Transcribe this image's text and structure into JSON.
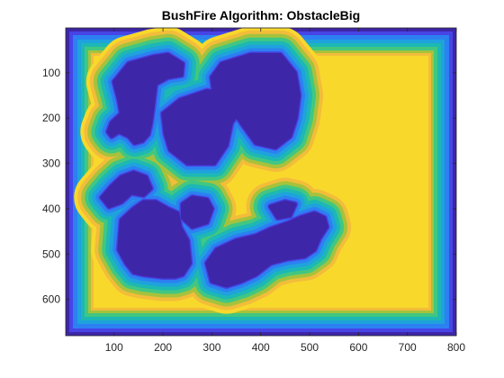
{
  "chart_data": {
    "type": "heatmap",
    "title": "BushFire Algorithm: ObstacleBig",
    "xlabel": "",
    "ylabel": "",
    "xlim": [
      1,
      800
    ],
    "ylim": [
      1,
      680
    ],
    "y_direction": "reverse",
    "x_ticks": [
      100,
      200,
      300,
      400,
      500,
      600,
      700,
      800
    ],
    "y_ticks": [
      100,
      200,
      300,
      400,
      500,
      600
    ],
    "colormap": "parula",
    "colormap_stops": [
      "#3e26a8",
      "#4744e5",
      "#2c80f2",
      "#1fa2dd",
      "#1db8b4",
      "#41c782",
      "#a6c23c",
      "#f2bd3a",
      "#f9d82c"
    ],
    "grid": false,
    "legend": "none",
    "wall_thickness_px": 42,
    "obstacles": [
      {
        "name": "upper-left blob",
        "kind": "polygon",
        "points": [
          [
            100,
            120
          ],
          [
            130,
            80
          ],
          [
            180,
            65
          ],
          [
            210,
            60
          ],
          [
            240,
            80
          ],
          [
            238,
            105
          ],
          [
            210,
            110
          ],
          [
            185,
            125
          ],
          [
            180,
            170
          ],
          [
            175,
            210
          ],
          [
            170,
            235
          ],
          [
            158,
            250
          ],
          [
            142,
            255
          ],
          [
            130,
            240
          ],
          [
            110,
            230
          ],
          [
            95,
            240
          ],
          [
            88,
            230
          ],
          [
            95,
            210
          ],
          [
            115,
            190
          ],
          [
            110,
            160
          ]
        ]
      },
      {
        "name": "upper-right blob",
        "kind": "polygon",
        "points": [
          [
            300,
            110
          ],
          [
            320,
            80
          ],
          [
            380,
            60
          ],
          [
            440,
            60
          ],
          [
            470,
            100
          ],
          [
            478,
            150
          ],
          [
            472,
            200
          ],
          [
            460,
            240
          ],
          [
            430,
            265
          ],
          [
            390,
            255
          ],
          [
            360,
            210
          ],
          [
            335,
            170
          ],
          [
            305,
            150
          ]
        ]
      },
      {
        "name": "center blob",
        "kind": "polygon",
        "points": [
          [
            200,
            190
          ],
          [
            235,
            160
          ],
          [
            290,
            140
          ],
          [
            335,
            145
          ],
          [
            360,
            180
          ],
          [
            340,
            210
          ],
          [
            330,
            260
          ],
          [
            305,
            300
          ],
          [
            250,
            300
          ],
          [
            215,
            270
          ],
          [
            205,
            235
          ]
        ]
      },
      {
        "name": "lower-left blob",
        "kind": "polygon",
        "points": [
          [
            115,
            425
          ],
          [
            140,
            400
          ],
          [
            160,
            385
          ],
          [
            185,
            385
          ],
          [
            210,
            400
          ],
          [
            230,
            410
          ],
          [
            235,
            440
          ],
          [
            250,
            470
          ],
          [
            255,
            520
          ],
          [
            240,
            545
          ],
          [
            225,
            550
          ],
          [
            200,
            550
          ],
          [
            160,
            545
          ],
          [
            140,
            540
          ],
          [
            125,
            520
          ],
          [
            110,
            490
          ]
        ]
      },
      {
        "name": "left mid arm",
        "kind": "polygon",
        "points": [
          [
            75,
            375
          ],
          [
            95,
            350
          ],
          [
            115,
            330
          ],
          [
            140,
            320
          ],
          [
            165,
            330
          ],
          [
            175,
            355
          ],
          [
            160,
            370
          ],
          [
            135,
            365
          ],
          [
            115,
            385
          ],
          [
            90,
            395
          ]
        ]
      },
      {
        "name": "lower-right blob",
        "kind": "polygon",
        "points": [
          [
            290,
            520
          ],
          [
            310,
            490
          ],
          [
            350,
            470
          ],
          [
            390,
            460
          ],
          [
            420,
            445
          ],
          [
            460,
            430
          ],
          [
            480,
            420
          ],
          [
            510,
            410
          ],
          [
            530,
            420
          ],
          [
            535,
            440
          ],
          [
            520,
            465
          ],
          [
            510,
            490
          ],
          [
            490,
            505
          ],
          [
            455,
            510
          ],
          [
            420,
            520
          ],
          [
            390,
            545
          ],
          [
            360,
            560
          ],
          [
            330,
            570
          ],
          [
            300,
            560
          ]
        ]
      },
      {
        "name": "lower-center blob",
        "kind": "polygon",
        "points": [
          [
            240,
            390
          ],
          [
            260,
            375
          ],
          [
            290,
            380
          ],
          [
            300,
            400
          ],
          [
            290,
            430
          ],
          [
            260,
            440
          ],
          [
            240,
            420
          ]
        ]
      },
      {
        "name": "lower-right ridge",
        "kind": "polygon",
        "points": [
          [
            420,
            395
          ],
          [
            450,
            385
          ],
          [
            470,
            390
          ],
          [
            460,
            415
          ],
          [
            435,
            420
          ]
        ]
      }
    ]
  }
}
